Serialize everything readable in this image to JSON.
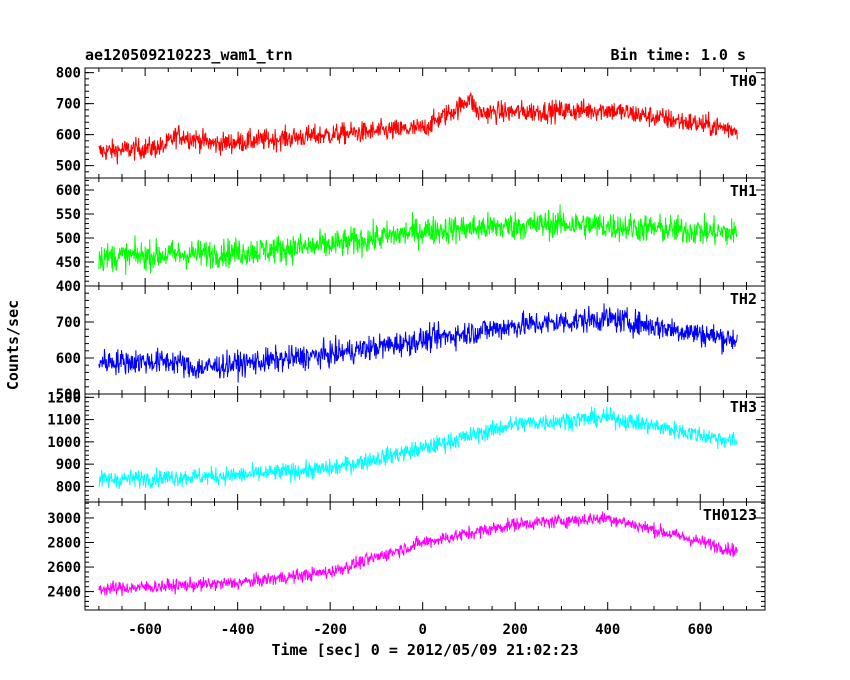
{
  "chart_data": {
    "type": "line",
    "title": "ae120509210223_wam1_trn",
    "subtitle": "Bin time: 1.0 s",
    "xlabel": "Time [sec] 0 = 2012/05/09 21:02:23",
    "ylabel": "Counts/sec",
    "xlim": [
      -730,
      740
    ],
    "x_ticks": [
      -600,
      -400,
      -200,
      0,
      200,
      400,
      600
    ],
    "x_range_data": [
      -700,
      680
    ],
    "grid": false,
    "panels": [
      {
        "name": "TH0",
        "color": "#ff0000",
        "ylim": [
          460,
          815
        ],
        "y_ticks": [
          500,
          600,
          700,
          800
        ],
        "trend": [
          [
            -700,
            545
          ],
          [
            -560,
            560
          ],
          [
            -530,
            600
          ],
          [
            -450,
            570
          ],
          [
            -200,
            600
          ],
          [
            0,
            620
          ],
          [
            80,
            690
          ],
          [
            100,
            720
          ],
          [
            120,
            670
          ],
          [
            400,
            680
          ],
          [
            680,
            615
          ]
        ],
        "noise": 35
      },
      {
        "name": "TH1",
        "color": "#00ff00",
        "ylim": [
          400,
          625
        ],
        "y_ticks": [
          400,
          450,
          500,
          550,
          600
        ],
        "trend": [
          [
            -700,
            460
          ],
          [
            -400,
            470
          ],
          [
            -200,
            485
          ],
          [
            0,
            515
          ],
          [
            300,
            530
          ],
          [
            680,
            510
          ]
        ],
        "noise": 30
      },
      {
        "name": "TH2",
        "color": "#0000ff",
        "ylim": [
          500,
          800
        ],
        "y_ticks": [
          500,
          600,
          700
        ],
        "trend": [
          [
            -700,
            590
          ],
          [
            -530,
            590
          ],
          [
            -500,
            570
          ],
          [
            -200,
            610
          ],
          [
            0,
            650
          ],
          [
            200,
            690
          ],
          [
            400,
            710
          ],
          [
            680,
            650
          ]
        ],
        "noise": 35
      },
      {
        "name": "TH3",
        "color": "#00ffff",
        "ylim": [
          730,
          1215
        ],
        "y_ticks": [
          800,
          900,
          1000,
          1100,
          1200
        ],
        "trend": [
          [
            -700,
            830
          ],
          [
            -400,
            850
          ],
          [
            -200,
            880
          ],
          [
            0,
            970
          ],
          [
            200,
            1080
          ],
          [
            400,
            1110
          ],
          [
            680,
            1000
          ]
        ],
        "noise": 40
      },
      {
        "name": "TH0123",
        "color": "#ff00ff",
        "ylim": [
          2250,
          3130
        ],
        "y_ticks": [
          2400,
          2600,
          2800,
          3000
        ],
        "trend": [
          [
            -700,
            2420
          ],
          [
            -400,
            2470
          ],
          [
            -200,
            2560
          ],
          [
            0,
            2800
          ],
          [
            200,
            2950
          ],
          [
            400,
            3000
          ],
          [
            680,
            2730
          ]
        ],
        "noise": 55
      }
    ]
  }
}
